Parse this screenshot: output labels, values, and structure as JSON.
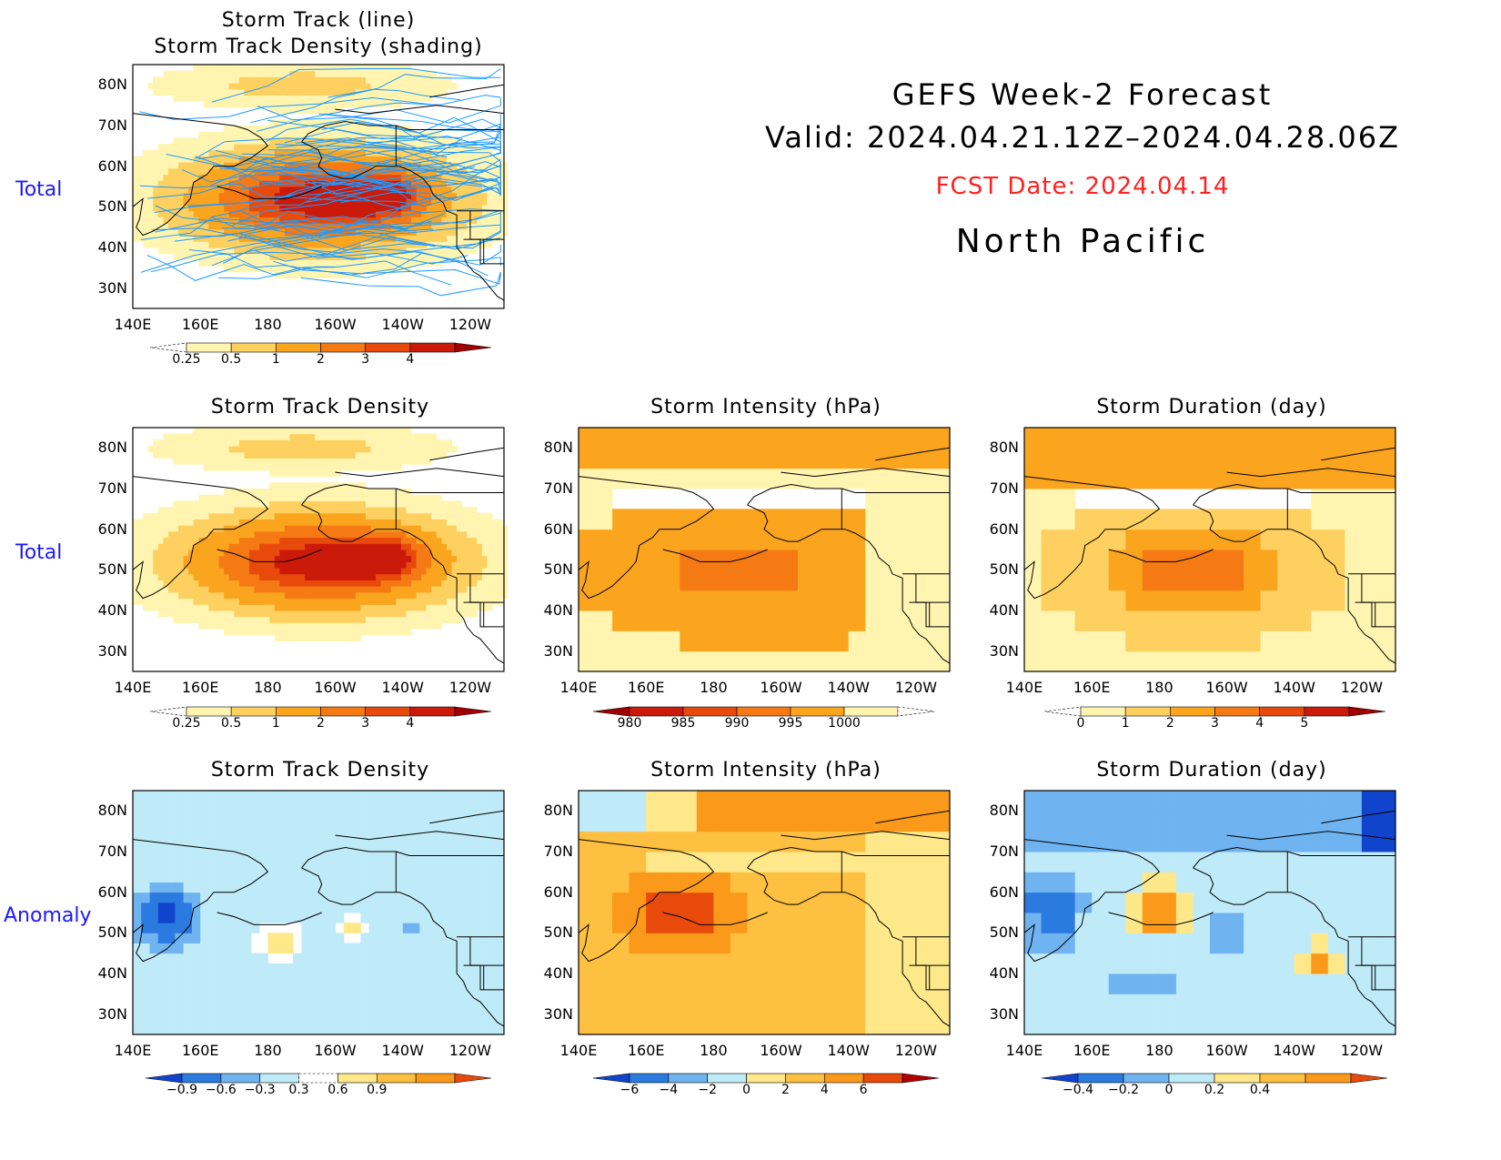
{
  "header": {
    "line1": "GEFS Week-2 Forecast",
    "line2": "Valid: 2024.04.21.12Z–2024.04.28.06Z",
    "line3": "FCST Date: 2024.04.14",
    "line4": "North Pacific",
    "fcst_color": "#ff2020"
  },
  "row_labels": {
    "top": "Total",
    "middle": "Total",
    "bottom": "Anomaly"
  },
  "axes": {
    "lat_labels": [
      "80N",
      "70N",
      "60N",
      "50N",
      "40N",
      "30N"
    ],
    "lon_labels": [
      "140E",
      "160E",
      "180",
      "160W",
      "140W",
      "120W"
    ]
  },
  "panels": {
    "p1": {
      "title1": "Storm Track (line)",
      "title2": "Storm Track Density (shading)"
    },
    "p2": {
      "title": "Storm Track Density"
    },
    "p3": {
      "title": "Storm Intensity (hPa)"
    },
    "p4": {
      "title": "Storm Duration (day)"
    },
    "p5": {
      "title": "Storm Track Density"
    },
    "p6": {
      "title": "Storm Intensity (hPa)"
    },
    "p7": {
      "title": "Storm Duration (day)"
    }
  },
  "colorbars": {
    "density": {
      "labels": [
        "0.25",
        "0.5",
        "1",
        "2",
        "3",
        "4"
      ],
      "colors": [
        "#ffffff",
        "#fff5b0",
        "#fdd060",
        "#fba51e",
        "#f57a14",
        "#e84a0c",
        "#cc1a0a",
        "#a00000"
      ]
    },
    "intensity": {
      "labels": [
        "980",
        "985",
        "990",
        "995",
        "1000"
      ],
      "colors": [
        "#a00000",
        "#cc1a0a",
        "#e84a0c",
        "#f57a14",
        "#fba51e",
        "#fff5b0",
        "#ffffff"
      ]
    },
    "duration": {
      "labels": [
        "0",
        "1",
        "2",
        "3",
        "4",
        "5"
      ],
      "colors": [
        "#ffffff",
        "#fff5b0",
        "#fdd060",
        "#fba51e",
        "#f57a14",
        "#e84a0c",
        "#cc1a0a",
        "#a00000"
      ]
    },
    "anom_density": {
      "labels": [
        "−0.9",
        "−0.6",
        "−0.3",
        "0.3",
        "0.6",
        "0.9"
      ],
      "colors": [
        "#1144cc",
        "#2b7ae0",
        "#6fb3f0",
        "#bfeaf7",
        "#ffffff",
        "#ffe88a",
        "#fdc040",
        "#fb9a1a",
        "#e84a0c"
      ]
    },
    "anom_intensity": {
      "labels": [
        "−6",
        "−4",
        "−2",
        "0",
        "2",
        "4",
        "6"
      ],
      "colors": [
        "#1144cc",
        "#2b7ae0",
        "#6fb3f0",
        "#bfeaf7",
        "#ffe88a",
        "#fdc040",
        "#fb9a1a",
        "#e84a0c",
        "#b00000"
      ]
    },
    "anom_duration": {
      "labels": [
        "−0.4",
        "−0.2",
        "0",
        "0.2",
        "0.4"
      ],
      "colors": [
        "#1144cc",
        "#2b7ae0",
        "#6fb3f0",
        "#bfeaf7",
        "#ffe88a",
        "#fdc040",
        "#fb9a1a",
        "#e84a0c"
      ]
    }
  },
  "colors": {
    "track_line": "#1f9aff",
    "coast": "#000000"
  }
}
